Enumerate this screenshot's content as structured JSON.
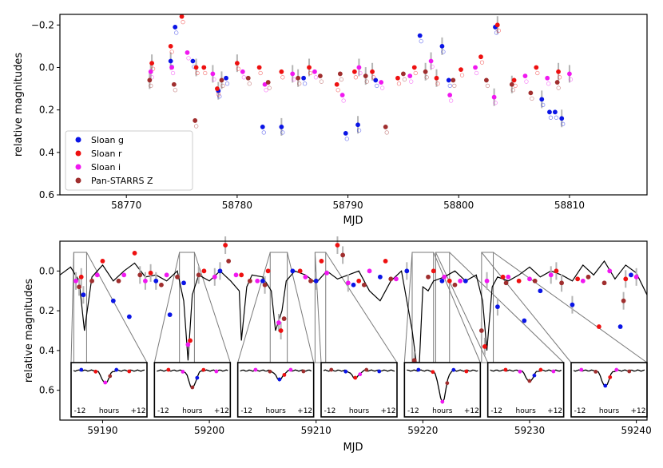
{
  "colors": {
    "sloan_g": "#0a14e6",
    "sloan_r": "#ee1010",
    "sloan_i": "#f018f0",
    "panstarrs_z": "#a02e2e",
    "errorbar": "#b4b4b4",
    "model": "#000000",
    "zoom_lines": "#7a7a7a"
  },
  "chart_data": [
    {
      "type": "scatter",
      "title": "",
      "xlabel": "MJD",
      "ylabel": "relative magnitudes",
      "xlim": [
        58764,
        58817
      ],
      "ylim": [
        0.6,
        -0.25
      ],
      "y_inverted": true,
      "xticks": [
        58770,
        58780,
        58790,
        58800,
        58810
      ],
      "xtick_labels": [
        "58770",
        "58780",
        "58790",
        "58800",
        "58810"
      ],
      "yticks": [
        -0.2,
        0.0,
        0.2,
        0.4,
        0.6
      ],
      "ytick_labels": [
        "−0.2",
        "0.0",
        "0.2",
        "0.4",
        "0.6"
      ],
      "legend_position": "lower-left",
      "series": [
        {
          "name": "Sloan g",
          "color_key": "sloan_g",
          "x": [
            58774.0,
            58774.4,
            58776.0,
            58778.3,
            58779.0,
            58782.3,
            58784.0,
            58786.0,
            58789.8,
            58790.9,
            58792.5,
            58796.5,
            58798.5,
            58799.1,
            58803.3,
            58807.5,
            58808.2,
            58808.7,
            58809.3
          ],
          "y": [
            -0.03,
            -0.19,
            -0.03,
            0.11,
            0.05,
            0.28,
            0.28,
            0.05,
            0.31,
            0.27,
            0.06,
            -0.15,
            -0.1,
            0.06,
            -0.19,
            0.15,
            0.21,
            0.21,
            0.24
          ]
        },
        {
          "name": "Sloan r",
          "color_key": "sloan_r",
          "x": [
            58772.3,
            58774.0,
            58775.0,
            58776.3,
            58777.0,
            58778.2,
            58780.0,
            58782.0,
            58784.0,
            58786.5,
            58789.0,
            58790.6,
            58792.2,
            58794.5,
            58796.0,
            58798.0,
            58800.2,
            58802.0,
            58803.5,
            58805.0,
            58807.0,
            58809.0
          ],
          "y": [
            -0.02,
            -0.1,
            -0.24,
            0.0,
            0.0,
            0.1,
            -0.02,
            0.0,
            0.02,
            0.0,
            0.08,
            0.02,
            0.02,
            0.05,
            0.0,
            0.05,
            0.01,
            -0.05,
            -0.2,
            0.06,
            0.0,
            0.02
          ]
        },
        {
          "name": "Sloan i",
          "color_key": "sloan_i",
          "x": [
            58772.2,
            58774.1,
            58775.5,
            58777.8,
            58780.5,
            58782.5,
            58785.0,
            58787.0,
            58789.5,
            58791.0,
            58793.0,
            58795.6,
            58797.5,
            58799.2,
            58801.5,
            58803.2,
            58806.0,
            58808.0,
            58810.0
          ],
          "y": [
            0.02,
            0.0,
            -0.07,
            0.03,
            0.02,
            0.08,
            0.03,
            0.02,
            0.13,
            0.0,
            0.07,
            0.04,
            -0.03,
            0.13,
            0.0,
            0.14,
            0.04,
            0.05,
            0.03
          ]
        },
        {
          "name": "Pan-STARRS Z",
          "color_key": "panstarrs_z",
          "x": [
            58772.1,
            58774.3,
            58776.2,
            58778.6,
            58781.0,
            58782.8,
            58785.5,
            58787.5,
            58789.3,
            58791.6,
            58793.4,
            58795.0,
            58797.0,
            58799.5,
            58802.5,
            58804.8,
            58806.5,
            58808.9
          ],
          "y": [
            0.06,
            0.08,
            0.25,
            0.06,
            0.05,
            0.07,
            0.05,
            0.04,
            0.03,
            0.04,
            0.28,
            0.03,
            0.02,
            0.06,
            0.06,
            0.08,
            0.12,
            0.07
          ]
        }
      ]
    },
    {
      "type": "scatter",
      "title": "",
      "xlabel": "MJD",
      "ylabel": "relative magnitudes",
      "xlim": [
        59186,
        59241
      ],
      "ylim": [
        0.75,
        -0.15
      ],
      "y_inverted": true,
      "xticks": [
        59190,
        59200,
        59210,
        59220,
        59230,
        59240
      ],
      "xtick_labels": [
        "59190",
        "59200",
        "59210",
        "59220",
        "59230",
        "59240"
      ],
      "yticks": [
        0.0,
        0.2,
        0.4,
        0.6
      ],
      "ytick_labels": [
        "0.0",
        "0.2",
        "0.4",
        "0.6"
      ],
      "model_line": {
        "x": [
          59186,
          59187,
          59187.8,
          59188.3,
          59189.0,
          59190.0,
          59191.0,
          59192.0,
          59193.0,
          59194.0,
          59195.0,
          59196.0,
          59197.0,
          59197.6,
          59198.0,
          59198.4,
          59199.0,
          59200.0,
          59201.0,
          59202.0,
          59202.8,
          59203.0,
          59203.5,
          59204.0,
          59205.0,
          59205.8,
          59206.2,
          59206.8,
          59207.2,
          59208.0,
          59209.0,
          59210.0,
          59211.0,
          59212.0,
          59213.0,
          59214.0,
          59215.0,
          59216.0,
          59217.0,
          59218.0,
          59219.0,
          59219.6,
          59220.0,
          59220.5,
          59221.0,
          59222.0,
          59223.0,
          59224.0,
          59225.0,
          59225.6,
          59226.0,
          59226.5,
          59227.0,
          59228.0,
          59229.0,
          59230.0,
          59231.0,
          59232.0,
          59233.0,
          59234.0,
          59235.0,
          59236.0,
          59237.0,
          59238.0,
          59239.0,
          59240.0,
          59241.0
        ],
        "y": [
          0.02,
          -0.02,
          0.05,
          0.3,
          0.03,
          -0.03,
          0.05,
          0.0,
          -0.04,
          0.03,
          0.02,
          0.05,
          0.0,
          0.15,
          0.45,
          0.12,
          0.02,
          0.05,
          0.0,
          0.05,
          0.1,
          0.35,
          0.08,
          0.02,
          0.03,
          0.1,
          0.3,
          0.2,
          0.05,
          0.0,
          0.02,
          0.06,
          0.0,
          0.04,
          0.02,
          0.0,
          0.1,
          0.15,
          0.05,
          0.0,
          0.3,
          0.55,
          0.08,
          0.1,
          0.05,
          0.03,
          0.0,
          0.05,
          0.02,
          0.15,
          0.4,
          0.08,
          0.03,
          0.05,
          0.02,
          -0.02,
          0.03,
          0.0,
          0.02,
          0.05,
          -0.03,
          0.02,
          -0.05,
          0.04,
          -0.03,
          0.01,
          0.12
        ]
      },
      "series": [
        {
          "name": "Sloan g",
          "color_key": "sloan_g",
          "x": [
            59188.2,
            59191.0,
            59192.5,
            59195.0,
            59196.3,
            59197.6,
            59201.0,
            59205.0,
            59207.8,
            59210.0,
            59213.5,
            59216.0,
            59218.5,
            59221.8,
            59224.0,
            59227.0,
            59229.5,
            59231.0,
            59234.0,
            59238.5,
            59239.5
          ],
          "y": [
            0.12,
            0.15,
            0.23,
            0.05,
            0.22,
            0.06,
            0.0,
            0.05,
            0.0,
            0.05,
            0.07,
            0.03,
            0.0,
            0.05,
            0.05,
            0.18,
            0.25,
            0.1,
            0.17,
            0.28,
            0.02
          ]
        },
        {
          "name": "Sloan r",
          "color_key": "sloan_r",
          "x": [
            59188.0,
            59190.0,
            59193.0,
            59194.5,
            59198.2,
            59199.5,
            59201.5,
            59203.0,
            59205.5,
            59206.7,
            59208.5,
            59210.5,
            59212.0,
            59214.0,
            59216.5,
            59219.8,
            59221.0,
            59222.5,
            59225.8,
            59227.5,
            59229.0,
            59232.5,
            59234.5,
            59236.5,
            59239.0
          ],
          "y": [
            0.03,
            -0.05,
            -0.09,
            0.01,
            0.35,
            0.0,
            -0.13,
            0.02,
            0.0,
            0.3,
            0.0,
            -0.05,
            -0.13,
            0.05,
            -0.05,
            0.58,
            0.0,
            0.05,
            0.38,
            0.03,
            0.05,
            0.0,
            0.04,
            0.28,
            0.04
          ]
        },
        {
          "name": "Sloan i",
          "color_key": "sloan_i",
          "x": [
            59187.5,
            59189.5,
            59192.0,
            59194.0,
            59196.0,
            59198.0,
            59200.5,
            59202.5,
            59204.5,
            59206.5,
            59209.0,
            59211.0,
            59213.0,
            59215.0,
            59217.5,
            59219.5,
            59222.0,
            59223.5,
            59226.0,
            59228.0,
            59230.0,
            59232.0,
            59235.0,
            59237.5,
            59240.0
          ],
          "y": [
            0.05,
            0.02,
            0.02,
            0.05,
            0.02,
            0.37,
            0.03,
            0.02,
            0.05,
            0.26,
            0.03,
            0.01,
            0.06,
            0.0,
            0.04,
            0.5,
            0.03,
            0.05,
            0.05,
            0.03,
            0.04,
            0.02,
            0.05,
            0.0,
            0.03
          ]
        },
        {
          "name": "Pan-STARRS Z",
          "color_key": "panstarrs_z",
          "x": [
            59187.8,
            59189.0,
            59191.5,
            59193.5,
            59195.5,
            59197.0,
            59199.0,
            59201.8,
            59203.8,
            59205.2,
            59207.0,
            59209.5,
            59212.5,
            59214.5,
            59217.0,
            59219.2,
            59220.5,
            59223.0,
            59225.5,
            59227.8,
            59230.5,
            59233.0,
            59235.5,
            59237.0,
            59238.8
          ],
          "y": [
            0.08,
            0.05,
            0.05,
            0.02,
            0.07,
            0.03,
            0.02,
            -0.05,
            0.05,
            0.07,
            0.24,
            0.05,
            -0.08,
            0.07,
            0.04,
            0.45,
            0.03,
            0.07,
            0.3,
            0.06,
            0.05,
            0.06,
            0.03,
            0.06,
            0.15
          ]
        }
      ],
      "zoom_insets": [
        {
          "tick_labels": [
            "-12",
            "hours",
            "+12"
          ],
          "mjd_range": [
            59187.3,
            59188.5
          ]
        },
        {
          "tick_labels": [
            "-12",
            "hours",
            "+12"
          ],
          "mjd_range": [
            59197.2,
            59198.6
          ]
        },
        {
          "tick_labels": [
            "-12",
            "hours",
            "+12"
          ],
          "mjd_range": [
            59205.7,
            59207.3
          ]
        },
        {
          "tick_labels": [
            "-12",
            "hours",
            "+12"
          ],
          "mjd_range": [
            59209.9,
            59210.9
          ]
        },
        {
          "tick_labels": [
            "-12",
            "hours",
            "+12"
          ],
          "mjd_range": [
            59219.0,
            59221.0
          ]
        },
        {
          "tick_labels": [
            "-12",
            "hours",
            "+12"
          ],
          "mjd_range": [
            59221.2,
            59222.5
          ]
        },
        {
          "tick_labels": [
            "-12",
            "hours",
            "+12"
          ],
          "mjd_range": [
            59225.5,
            59226.6
          ]
        }
      ]
    }
  ]
}
